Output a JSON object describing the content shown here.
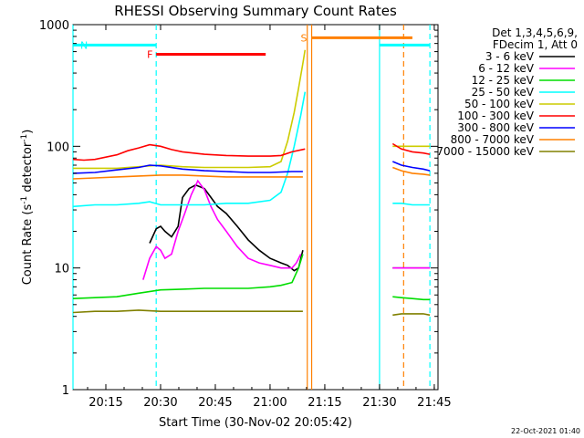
{
  "chart_data": {
    "type": "line",
    "title": "RHESSI Observing Summary Count Rates",
    "xlabel": "Start Time (30-Nov-02 20:05:42)",
    "ylabel_main": "Count Rate (s",
    "ylabel_sup": "-1",
    "ylabel_mid": " detector",
    "ylabel_end": ")",
    "yscale": "log",
    "ylim": [
      1,
      1000
    ],
    "xlim": [
      20.1,
      21.767
    ],
    "x_ticks": [
      {
        "x": 20.25,
        "label": "20:15"
      },
      {
        "x": 20.5,
        "label": "20:30"
      },
      {
        "x": 20.75,
        "label": "20:45"
      },
      {
        "x": 21.0,
        "label": "21:00"
      },
      {
        "x": 21.25,
        "label": "21:15"
      },
      {
        "x": 21.5,
        "label": "21:30"
      },
      {
        "x": 21.75,
        "label": "21:45"
      }
    ],
    "y_ticks": [
      {
        "y": 1,
        "label": "1"
      },
      {
        "y": 10,
        "label": "10"
      },
      {
        "y": 100,
        "label": "100"
      },
      {
        "y": 1000,
        "label": "1000"
      }
    ],
    "legend_header": [
      "Det 1,3,4,5,6,9,",
      "FDecim 1, Att 0"
    ],
    "series": [
      {
        "name": "3 - 6 keV",
        "color": "#000000",
        "x": [
          20.45,
          20.48,
          20.5,
          20.52,
          20.55,
          20.58,
          20.6,
          20.63,
          20.66,
          20.7,
          20.73,
          20.76,
          20.8,
          20.85,
          20.9,
          20.95,
          21.0,
          21.05,
          21.08,
          21.11,
          21.13,
          21.15
        ],
        "y": [
          16,
          21,
          22,
          20,
          18,
          22,
          38,
          45,
          48,
          45,
          38,
          32,
          28,
          22,
          17,
          14,
          12,
          11,
          10.5,
          9.5,
          10,
          14
        ]
      },
      {
        "name": "6 - 12 keV",
        "color": "#ff00ff",
        "x": [
          20.42,
          20.45,
          20.48,
          20.5,
          20.52,
          20.55,
          20.58,
          20.61,
          20.64,
          20.67,
          20.7,
          20.73,
          20.76,
          20.8,
          20.85,
          20.9,
          20.95,
          21.0,
          21.05,
          21.1,
          21.12,
          21.14
        ],
        "y": [
          8,
          12,
          15,
          14,
          12,
          13,
          20,
          28,
          40,
          52,
          44,
          32,
          25,
          20,
          15,
          12,
          11,
          10.5,
          10,
          10,
          11,
          13
        ]
      },
      {
        "name": "12 - 25 keV",
        "color": "#00dd00",
        "x": [
          20.1,
          20.2,
          20.3,
          20.4,
          20.5,
          20.6,
          20.7,
          20.8,
          20.9,
          21.0,
          21.05,
          21.1,
          21.13,
          21.15
        ],
        "y": [
          5.6,
          5.7,
          5.8,
          6.2,
          6.6,
          6.7,
          6.8,
          6.8,
          6.8,
          7.0,
          7.2,
          7.6,
          10,
          13
        ]
      },
      {
        "name": "25 - 50 keV",
        "color": "#00ffff",
        "x": [
          20.1,
          20.2,
          20.3,
          20.4,
          20.45,
          20.5,
          20.6,
          20.7,
          20.8,
          20.9,
          21.0,
          21.05,
          21.08,
          21.11,
          21.14,
          21.16
        ],
        "y": [
          32,
          33,
          33,
          34,
          35,
          33,
          33,
          33,
          34,
          34,
          36,
          42,
          60,
          100,
          180,
          280
        ]
      },
      {
        "name": "50 - 100 keV",
        "color": "#cccc00",
        "x": [
          20.1,
          20.2,
          20.3,
          20.4,
          20.5,
          20.6,
          20.7,
          20.8,
          20.9,
          21.0,
          21.05,
          21.08,
          21.11,
          21.13,
          21.15,
          21.16
        ],
        "y": [
          66,
          66,
          66,
          68,
          70,
          68,
          67,
          67,
          67,
          68,
          75,
          110,
          190,
          300,
          480,
          620
        ]
      },
      {
        "name": "100 - 300 keV",
        "color": "#ff0000",
        "x": [
          20.1,
          20.15,
          20.2,
          20.3,
          20.35,
          20.4,
          20.45,
          20.5,
          20.55,
          20.6,
          20.7,
          20.8,
          20.9,
          21.0,
          21.05,
          21.1,
          21.16
        ],
        "y": [
          78,
          77,
          78,
          85,
          92,
          97,
          103,
          100,
          94,
          90,
          86,
          84,
          83,
          83,
          84,
          90,
          95
        ]
      },
      {
        "name": "300 - 800 keV",
        "color": "#0000ff",
        "x": [
          20.1,
          20.2,
          20.3,
          20.4,
          20.45,
          20.5,
          20.6,
          20.7,
          20.8,
          20.9,
          21.0,
          21.1,
          21.15
        ],
        "y": [
          60,
          61,
          64,
          67,
          70,
          69,
          65,
          63,
          62,
          61,
          61,
          62,
          62
        ]
      },
      {
        "name": "800 - 7000 keV",
        "color": "#ff8000",
        "x": [
          20.1,
          20.2,
          20.3,
          20.4,
          20.5,
          20.6,
          20.7,
          20.8,
          20.9,
          21.0,
          21.1,
          21.15
        ],
        "y": [
          54,
          55,
          56,
          57,
          58,
          58,
          57,
          56,
          56,
          56,
          56,
          56
        ]
      },
      {
        "name": "7000 - 15000 keV",
        "color": "#808000",
        "x": [
          20.1,
          20.2,
          20.3,
          20.4,
          20.5,
          20.6,
          20.7,
          20.8,
          20.9,
          21.0,
          21.1,
          21.15
        ],
        "y": [
          4.3,
          4.4,
          4.4,
          4.5,
          4.4,
          4.4,
          4.4,
          4.4,
          4.4,
          4.4,
          4.4,
          4.4
        ]
      }
    ],
    "series_after_gap": {
      "x": [
        21.56,
        21.6,
        21.65,
        21.7,
        21.73
      ],
      "y_by_series": [
        [
          10,
          10,
          10,
          10,
          10
        ],
        [
          10,
          10,
          10,
          10,
          10
        ],
        [
          5.8,
          5.7,
          5.6,
          5.5,
          5.5
        ],
        [
          34,
          34,
          33,
          33,
          33
        ],
        [
          100,
          100,
          100,
          100,
          100
        ],
        [
          105,
          95,
          90,
          88,
          86
        ],
        [
          75,
          70,
          67,
          65,
          63
        ],
        [
          67,
          63,
          60,
          59,
          58
        ],
        [
          4.1,
          4.2,
          4.2,
          4.2,
          4.1
        ]
      ]
    },
    "state_bars": [
      {
        "label": "N",
        "color": "#00ffff",
        "x0": 20.1,
        "x1": 20.48,
        "y": 680
      },
      {
        "label": "F",
        "color": "#ff0000",
        "x0": 20.48,
        "x1": 20.98,
        "y": 570
      },
      {
        "label": "S",
        "color": "#ff8000",
        "x0": 21.19,
        "x1": 21.65,
        "y": 780
      },
      {
        "label": "",
        "color": "#00ffff",
        "x0": 21.5,
        "x1": 21.73,
        "y": 680
      }
    ],
    "vertical_lines": [
      {
        "x": 20.1,
        "color": "#00ffff",
        "style": "solid"
      },
      {
        "x": 20.48,
        "color": "#00ffff",
        "style": "dashed"
      },
      {
        "x": 21.17,
        "color": "#ff8000",
        "style": "solid"
      },
      {
        "x": 21.19,
        "color": "#ff8000",
        "style": "solid"
      },
      {
        "x": 21.5,
        "color": "#00ffff",
        "style": "solid"
      },
      {
        "x": 21.61,
        "color": "#ff8000",
        "style": "dashed"
      },
      {
        "x": 21.73,
        "color": "#00ffff",
        "style": "dashed"
      }
    ],
    "grid": false,
    "legend_placement": "right"
  },
  "footer_date": "22-Oct-2021 01:40"
}
